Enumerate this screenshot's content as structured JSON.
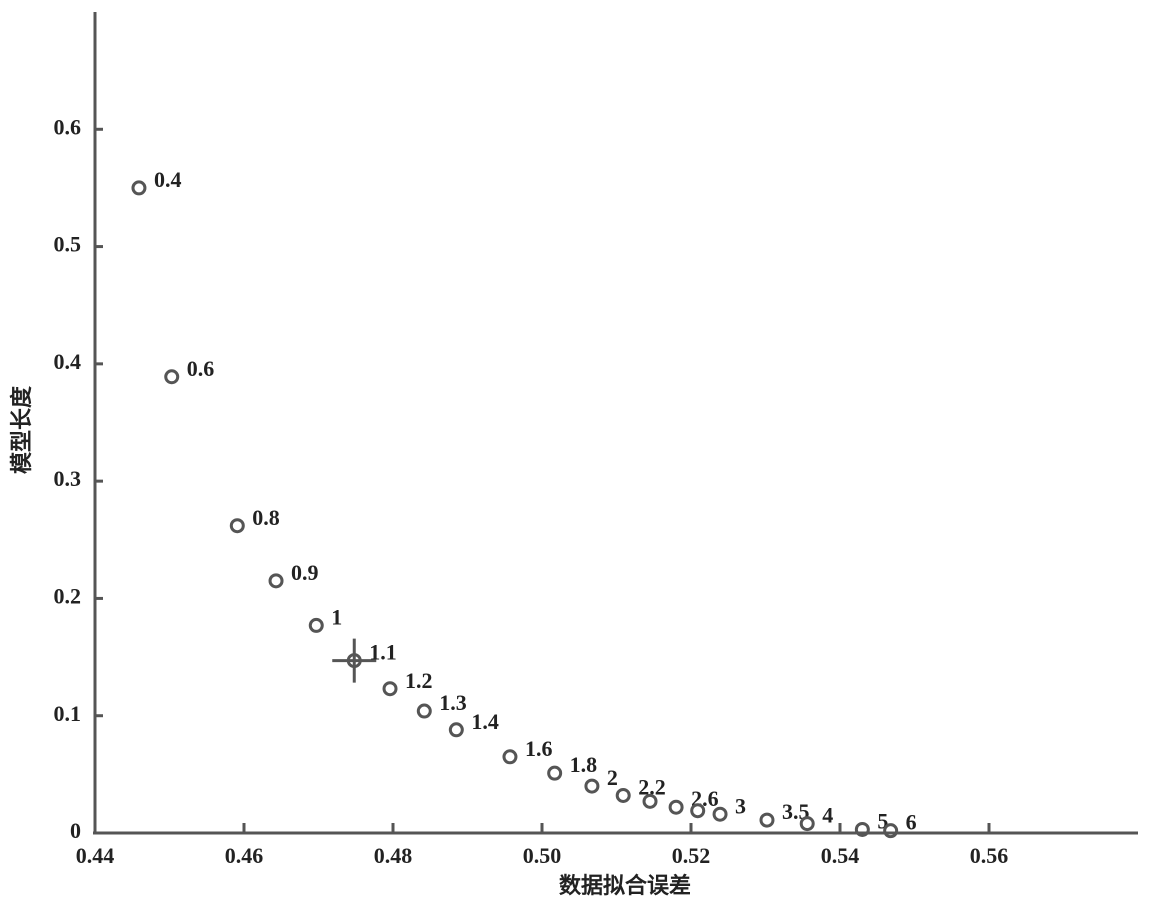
{
  "chart_data": {
    "type": "scatter",
    "x_label": "数据拟合误差",
    "y_label": "模型长度",
    "x": [
      0.4459,
      0.4503,
      0.4591,
      0.4643,
      0.4697,
      0.4748,
      0.4796,
      0.4842,
      0.4885,
      0.4957,
      0.5017,
      0.5067,
      0.5109,
      0.5145,
      0.518,
      0.5209,
      0.5239,
      0.5302,
      0.5356,
      0.543,
      0.5468
    ],
    "values": [
      0.55,
      0.389,
      0.262,
      0.215,
      0.177,
      0.147,
      0.123,
      0.104,
      0.088,
      0.065,
      0.051,
      0.04,
      0.032,
      0.027,
      0.022,
      0.019,
      0.016,
      0.011,
      0.008,
      0.003,
      0.002
    ],
    "point_labels": [
      "0.4",
      "0.6",
      "0.8",
      "0.9",
      "1",
      "1.1",
      "1.2",
      "1.3",
      "1.4",
      "1.6",
      "1.8",
      "2",
      "2.2",
      null,
      "2.6",
      null,
      "3",
      "3.5",
      "4",
      "5",
      "6"
    ],
    "highlight_index": 5,
    "color": "#555555",
    "xlim": [
      0.44,
      0.58
    ],
    "xticks": [
      0.44,
      0.46,
      0.48,
      {
        "value": 0.5,
        "label": "0.50"
      },
      0.52,
      0.54,
      0.56
    ],
    "ylim": [
      0,
      0.7
    ],
    "yticks": [
      0,
      0.1,
      0.2,
      0.3,
      0.4,
      0.5,
      0.6
    ],
    "grid": false
  }
}
